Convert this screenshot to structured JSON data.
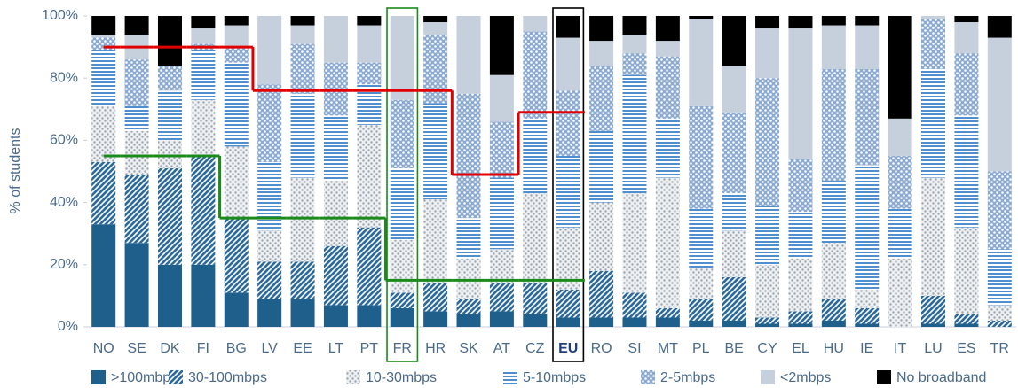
{
  "chart_data": {
    "type": "stacked_bar",
    "y_label": "% of students",
    "ylim": [
      0,
      100
    ],
    "yticks": [
      {
        "value": 0,
        "label": "0%"
      },
      {
        "value": 20,
        "label": "20%"
      },
      {
        "value": 40,
        "label": "40%"
      },
      {
        "value": 60,
        "label": "60%"
      },
      {
        "value": 80,
        "label": "80%"
      },
      {
        "value": 100,
        "label": "100%"
      }
    ],
    "categories": [
      "NO",
      "SE",
      "DK",
      "FI",
      "BG",
      "LV",
      "EE",
      "LT",
      "PT",
      "FR",
      "HR",
      "SK",
      "AT",
      "CZ",
      "EU",
      "RO",
      "SI",
      "MT",
      "PL",
      "BE",
      "CY",
      "EL",
      "HU",
      "IE",
      "IT",
      "LU",
      "ES",
      "TR"
    ],
    "series": [
      {
        "name": ">100mbps",
        "color": "#1f5f8b",
        "pattern": "solid",
        "values": [
          33,
          27,
          20,
          20,
          11,
          9,
          9,
          7,
          7,
          6,
          5,
          4,
          5,
          4,
          3,
          3,
          3,
          3,
          2,
          2,
          1,
          1,
          2,
          1,
          0,
          1,
          1,
          0
        ]
      },
      {
        "name": "30-100mbps",
        "color": "#2a6a9a",
        "pattern": "diagonal",
        "values": [
          20,
          22,
          31,
          35,
          24,
          12,
          12,
          19,
          25,
          5,
          9,
          5,
          9,
          10,
          9,
          15,
          8,
          3,
          7,
          14,
          2,
          4,
          7,
          5,
          0,
          9,
          3,
          2
        ]
      },
      {
        "name": "10-30mbps",
        "color": "#9aa6b2",
        "pattern": "dots",
        "values": [
          18,
          14,
          9,
          18,
          23,
          10,
          27,
          21,
          33,
          17,
          27,
          13,
          11,
          29,
          20,
          22,
          32,
          42,
          10,
          15,
          17,
          17,
          18,
          6,
          22,
          38,
          28,
          5
        ]
      },
      {
        "name": "5-10mbps",
        "color": "#4f8fd0",
        "pattern": "hlines",
        "values": [
          18,
          8,
          16,
          16,
          27,
          22,
          27,
          21,
          13,
          23,
          31,
          13,
          23,
          24,
          23,
          23,
          38,
          19,
          19,
          12,
          19,
          15,
          20,
          40,
          16,
          35,
          36,
          18
        ]
      },
      {
        "name": "2-5mbps",
        "color": "#8aaad2",
        "pattern": "dots-inverse",
        "values": [
          4,
          15,
          8,
          2,
          5,
          25,
          16,
          17,
          7,
          22,
          22,
          40,
          18,
          28,
          21,
          21,
          7,
          20,
          33,
          26,
          41,
          17,
          36,
          31,
          17,
          16,
          20,
          25
        ]
      },
      {
        "name": "<2mbps",
        "color": "#c6d0dc",
        "pattern": "solid",
        "values": [
          1,
          8,
          0,
          5,
          7,
          22,
          6,
          15,
          12,
          27,
          4,
          25,
          15,
          5,
          17,
          8,
          6,
          5,
          28,
          15,
          16,
          42,
          14,
          14,
          12,
          1,
          10,
          43
        ]
      },
      {
        "name": "No broadband",
        "color": "#000000",
        "pattern": "solid",
        "values": [
          6,
          6,
          16,
          4,
          3,
          0,
          3,
          0,
          3,
          0,
          2,
          0,
          19,
          0,
          7,
          8,
          6,
          8,
          1,
          16,
          4,
          4,
          3,
          3,
          33,
          0,
          2,
          7
        ]
      }
    ],
    "step_lines": [
      {
        "color": "#e00000",
        "values": [
          90,
          90,
          90,
          90,
          90,
          76,
          76,
          76,
          76,
          76,
          76,
          49,
          49,
          69,
          69,
          null,
          null,
          null,
          null,
          null,
          null,
          null,
          null,
          null,
          null,
          null,
          null,
          null
        ]
      },
      {
        "color": "#1a8a1a",
        "values": [
          55,
          55,
          55,
          55,
          35,
          35,
          35,
          35,
          35,
          15,
          15,
          15,
          15,
          15,
          15,
          null,
          null,
          null,
          null,
          null,
          null,
          null,
          null,
          null,
          null,
          null,
          null,
          null
        ]
      }
    ],
    "highlights": [
      {
        "category": "FR",
        "color": "#1a8a1a",
        "bold_label": false
      },
      {
        "category": "EU",
        "color": "#000000",
        "bold_label": true
      }
    ],
    "legend": "bottom"
  }
}
